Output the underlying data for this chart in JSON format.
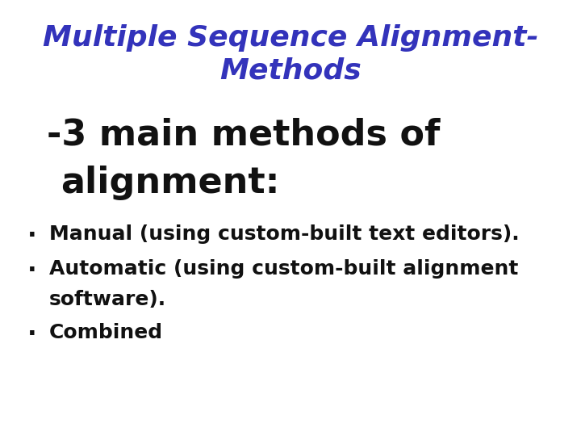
{
  "background_color": "#ffffff",
  "title_line1": "Multiple Sequence Alignment-",
  "title_line2": "Methods",
  "title_color": "#3333bb",
  "subtitle_line1": "-3 main methods of",
  "subtitle_line2": "alignment:",
  "subtitle_color": "#111111",
  "bullet1": "Manual (using custom-built text editors).",
  "bullet2a": "Automatic (using custom-built alignment",
  "bullet2b": "software).",
  "bullet3": "Combined",
  "bullet_color": "#111111",
  "title_fontsize": 26,
  "subtitle_fontsize": 32,
  "bullet_fontsize": 18,
  "fig_width": 7.2,
  "fig_height": 5.4,
  "dpi": 100
}
